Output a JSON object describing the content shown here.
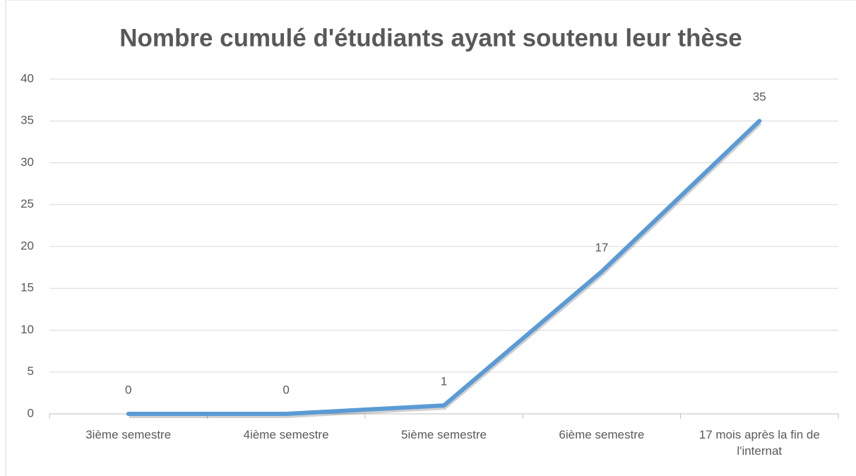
{
  "chart_data": {
    "type": "line",
    "title": "Nombre cumulé d'étudiants ayant soutenu leur thèse",
    "categories": [
      "3ième semestre",
      "4ième semestre",
      "5ième semestre",
      "6ième semestre",
      "17 mois après la fin de l'internat"
    ],
    "series": [
      {
        "name": "Nombre cumulé",
        "color": "#5b9bd5",
        "values": [
          0,
          0,
          1,
          17,
          35
        ]
      }
    ],
    "ylim": [
      0,
      40
    ],
    "yticks": [
      0,
      5,
      10,
      15,
      20,
      25,
      30,
      35,
      40
    ],
    "grid": true
  }
}
